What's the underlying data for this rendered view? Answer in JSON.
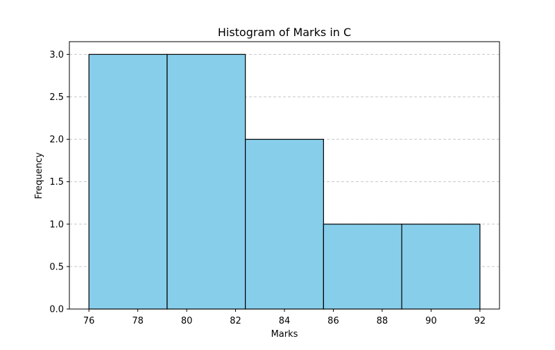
{
  "chart_data": {
    "type": "histogram",
    "title": "Histogram of Marks in C",
    "xlabel": "Marks",
    "ylabel": "Frequency",
    "bins": [
      {
        "start": 76.0,
        "end": 79.2,
        "count": 3
      },
      {
        "start": 79.2,
        "end": 82.4,
        "count": 3
      },
      {
        "start": 82.4,
        "end": 85.6,
        "count": 2
      },
      {
        "start": 85.6,
        "end": 88.8,
        "count": 1
      },
      {
        "start": 88.8,
        "end": 92.0,
        "count": 1
      }
    ],
    "xlim": [
      75.2,
      92.8
    ],
    "ylim": [
      0,
      3.15
    ],
    "xticks": [
      76,
      78,
      80,
      82,
      84,
      86,
      88,
      90,
      92
    ],
    "xtick_labels": [
      "76",
      "78",
      "80",
      "82",
      "84",
      "86",
      "88",
      "90",
      "92"
    ],
    "yticks": [
      0.0,
      0.5,
      1.0,
      1.5,
      2.0,
      2.5,
      3.0
    ],
    "ytick_labels": [
      "0.0",
      "0.5",
      "1.0",
      "1.5",
      "2.0",
      "2.5",
      "3.0"
    ],
    "grid": {
      "axis": "y",
      "style": "dashed"
    },
    "colors": {
      "bar_fill": "#87ceeb",
      "bar_edge": "#000000",
      "grid": "#c8c8c8"
    }
  }
}
